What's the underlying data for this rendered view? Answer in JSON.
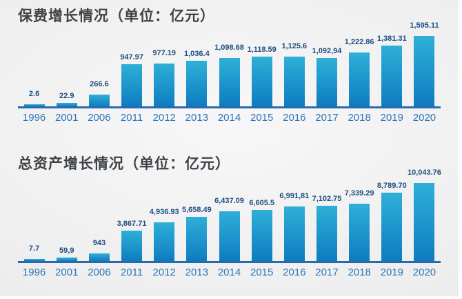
{
  "chart_data": [
    {
      "type": "bar",
      "title": "保费增长情况（单位：亿元）",
      "categories": [
        "1996",
        "2001",
        "2006",
        "2011",
        "2012",
        "2013",
        "2014",
        "2015",
        "2016",
        "2017",
        "2018",
        "2019",
        "2020"
      ],
      "values": [
        2.6,
        22.9,
        266.6,
        947.97,
        977.19,
        1036.4,
        1098.68,
        1118.59,
        1125.6,
        1092.94,
        1222.86,
        1381.31,
        1595.11
      ],
      "value_labels": [
        "2.6",
        "22.9",
        "266.6",
        "947.97",
        "977.19",
        "1,036.4",
        "1,098.68",
        "1,118.59",
        "1,125.6",
        "1,092,94",
        "1,222.86",
        "1,381.31",
        "1,595.11"
      ],
      "xlabel": "",
      "ylabel": "",
      "ylim": [
        0,
        1600
      ],
      "grid": false,
      "legend": "none",
      "colors": {
        "bar_top": "#2fafd8",
        "bar_bottom": "#0e7cc0",
        "value_label": "#1d4e7e",
        "tick_label": "#2d76b8",
        "axis_line": "#2a69ae",
        "title": "#3e4347"
      }
    },
    {
      "type": "bar",
      "title": "总资产增长情况（单位：亿元）",
      "categories": [
        "1996",
        "2001",
        "2006",
        "2011",
        "2012",
        "2013",
        "2014",
        "2015",
        "2016",
        "2017",
        "2018",
        "2019",
        "2020"
      ],
      "values": [
        7.7,
        59.9,
        943,
        3867.71,
        4936.93,
        5658.49,
        6437.09,
        6605.5,
        6991.81,
        7102.75,
        7339.29,
        8789.7,
        10043.76
      ],
      "value_labels": [
        "7.7",
        "59,9",
        "943",
        "3,867.71",
        "4,936.93",
        "5,658.49",
        "6,437.09",
        "6,605.5",
        "6,991,81",
        "7,102.75",
        "7,339.29",
        "8,789.70",
        "10,043.76"
      ],
      "xlabel": "",
      "ylabel": "",
      "ylim": [
        0,
        10050
      ],
      "grid": false,
      "legend": "none",
      "colors": {
        "bar_top": "#2fafd8",
        "bar_bottom": "#0e7cc0",
        "value_label": "#1d4e7e",
        "tick_label": "#2d76b8",
        "axis_line": "#2a69ae",
        "title": "#3e4347"
      }
    }
  ]
}
